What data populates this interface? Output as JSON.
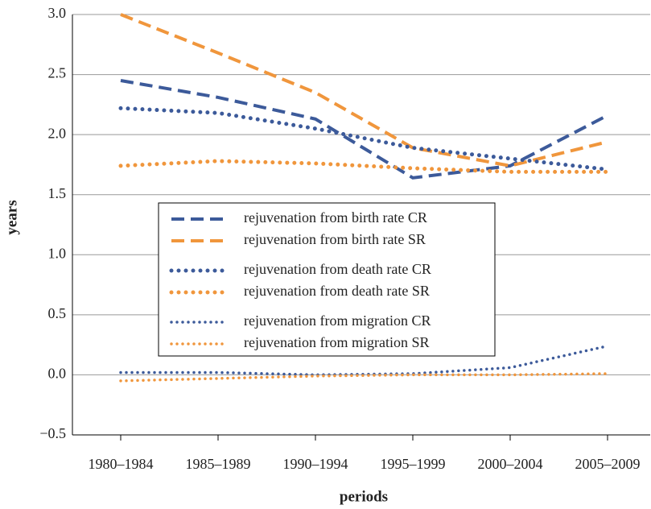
{
  "chart_data": {
    "type": "line",
    "xlabel": "periods",
    "ylabel": "years",
    "categories": [
      "1980–1984",
      "1985–1989",
      "1990–1994",
      "1995–1999",
      "2000–2004",
      "2005–2009"
    ],
    "ylim": [
      -0.5,
      3.0
    ],
    "yticks": [
      {
        "value": -0.5,
        "label": "−0.5"
      },
      {
        "value": 0,
        "label": "0.0"
      },
      {
        "value": 0.5,
        "label": "0.5"
      },
      {
        "value": 1,
        "label": "1.0"
      },
      {
        "value": 1.5,
        "label": "1.5"
      },
      {
        "value": 2,
        "label": "2.0"
      },
      {
        "value": 2.5,
        "label": "2.5"
      },
      {
        "value": 3,
        "label": "3.0"
      }
    ],
    "grid": true,
    "series": [
      {
        "name": "rejuvenation from birth rate CR",
        "color": "#3c5a9a",
        "style": "dashed",
        "values": [
          2.45,
          2.31,
          2.13,
          1.64,
          1.74,
          2.16
        ]
      },
      {
        "name": "rejuvenation from birth rate SR",
        "color": "#f0963c",
        "style": "dashed",
        "values": [
          3.0,
          2.68,
          2.35,
          1.89,
          1.74,
          1.94
        ]
      },
      {
        "name": "rejuvenation from death rate CR",
        "color": "#3c5a9a",
        "style": "dotted",
        "values": [
          2.22,
          2.18,
          2.05,
          1.89,
          1.8,
          1.71
        ]
      },
      {
        "name": "rejuvenation from death rate SR",
        "color": "#f0963c",
        "style": "dotted",
        "values": [
          1.74,
          1.78,
          1.76,
          1.72,
          1.69,
          1.69
        ]
      },
      {
        "name": "rejuvenation from migration CR",
        "color": "#3c5a9a",
        "style": "fine-dotted",
        "values": [
          0.02,
          0.02,
          0.0,
          0.01,
          0.06,
          0.24
        ]
      },
      {
        "name": "rejuvenation from migration SR",
        "color": "#f0963c",
        "style": "fine-dotted",
        "values": [
          -0.05,
          -0.03,
          -0.01,
          0.0,
          0.0,
          0.01
        ]
      }
    ]
  }
}
